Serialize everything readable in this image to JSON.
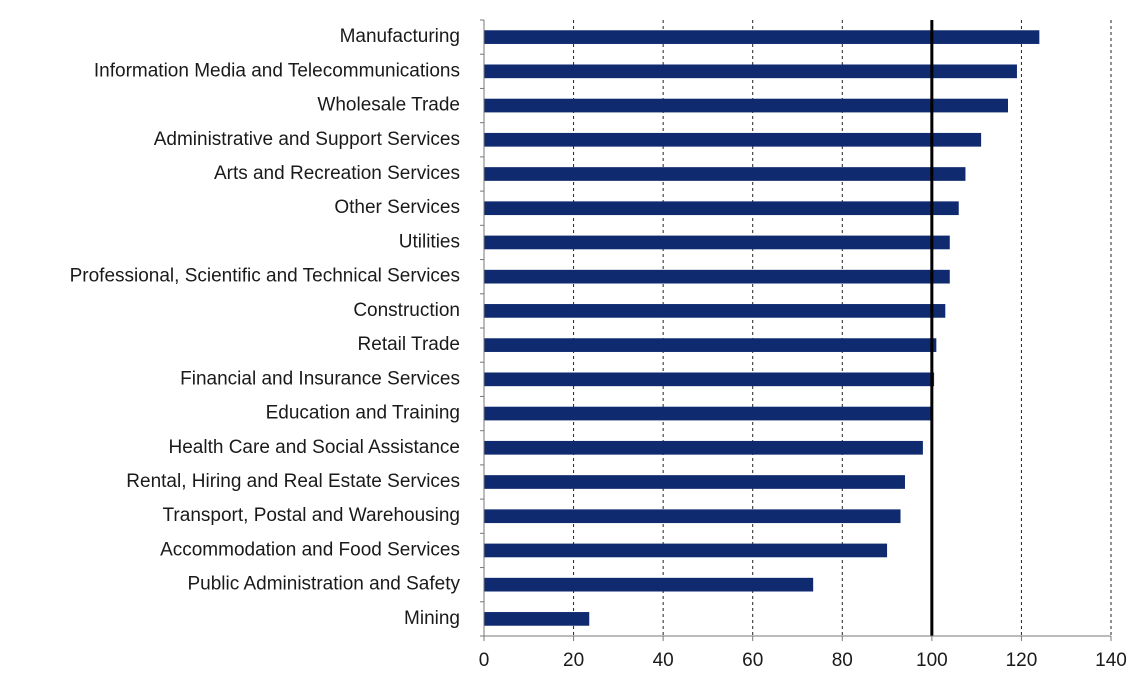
{
  "chart_data": {
    "type": "bar",
    "orientation": "horizontal",
    "title": "",
    "xlabel": "",
    "ylabel": "",
    "xlim": [
      0,
      140
    ],
    "xticks": [
      0,
      20,
      40,
      60,
      80,
      100,
      120,
      140
    ],
    "grid": "vertical dashed",
    "reference_line": 100,
    "bar_color": "#0f2a6e",
    "categories": [
      "Manufacturing",
      "Information Media and Telecommunications",
      "Wholesale Trade",
      "Administrative and Support Services",
      "Arts and Recreation Services",
      "Other Services",
      "Utilities",
      "Professional, Scientific and Technical Services",
      "Construction",
      "Retail Trade",
      "Financial and Insurance Services",
      "Education and Training",
      "Health Care and Social Assistance",
      "Rental, Hiring and Real Estate Services",
      "Transport, Postal and Warehousing",
      "Accommodation and Food Services",
      "Public Administration and Safety",
      "Mining"
    ],
    "values": [
      124,
      119,
      117,
      111,
      107.5,
      106,
      104,
      104,
      103,
      101,
      100.5,
      100,
      98,
      94,
      93,
      90,
      73.5,
      23.5
    ]
  }
}
